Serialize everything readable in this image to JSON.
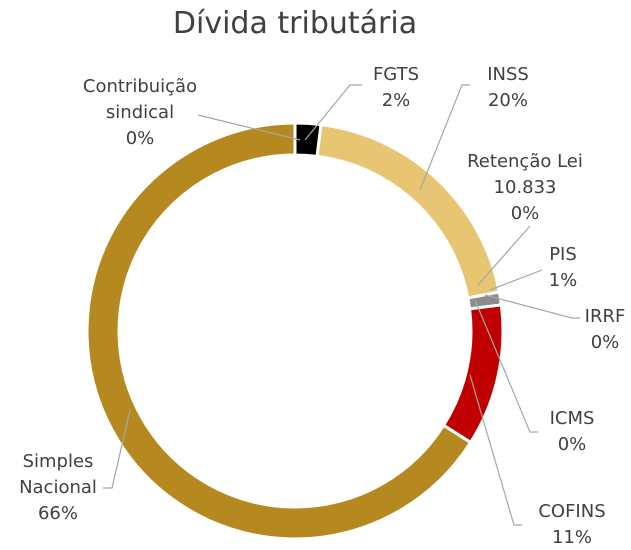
{
  "chart_data": {
    "type": "doughnut",
    "title": "Dívida tributária",
    "categories": [
      "Contribuição sindical",
      "FGTS",
      "INSS",
      "Retenção Lei 10.833",
      "PIS",
      "IRRF",
      "ICMS",
      "COFINS",
      "Simples Nacional"
    ],
    "values": [
      0,
      2,
      20,
      0,
      1,
      0,
      0,
      11,
      66
    ],
    "value_labels": [
      "0%",
      "2%",
      "20%",
      "0%",
      "1%",
      "0%",
      "0%",
      "11%",
      "66%"
    ],
    "colors": [
      "#f2f2f2",
      "#000000",
      "#e8c572",
      "#ffffff",
      "#8c8c8c",
      "#d9d9d9",
      "#f5e6c8",
      "#c00000",
      "#b5891f"
    ]
  }
}
